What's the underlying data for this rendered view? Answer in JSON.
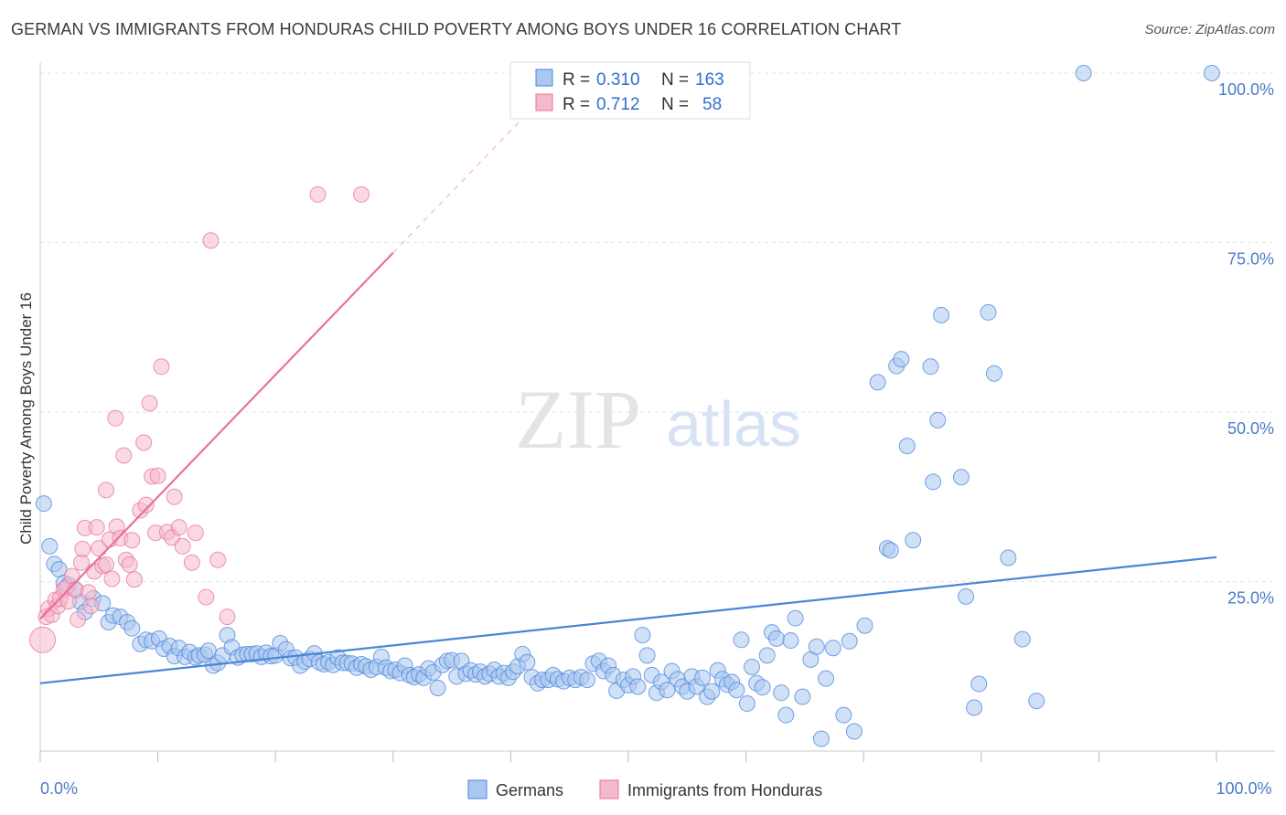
{
  "header": {
    "title": "GERMAN VS IMMIGRANTS FROM HONDURAS CHILD POVERTY AMONG BOYS UNDER 16 CORRELATION CHART",
    "source": "Source: ZipAtlas.com"
  },
  "watermark": {
    "zip": "ZIP",
    "atlas": "atlas"
  },
  "colors": {
    "blue": "#4a86d8",
    "blue_fill": "#a9c7f0",
    "pink": "#e8729a",
    "pink_fill": "#f6b9cc",
    "tick": "#4a7cc7"
  },
  "legend": {
    "rows": [
      {
        "r_label": "R =",
        "r_value": "0.310",
        "n_label": "N =",
        "n_value": "163"
      },
      {
        "r_label": "R =",
        "r_value": "0.712",
        "n_label": "N =",
        "n_value": "58"
      }
    ]
  },
  "chart_data": {
    "type": "scatter",
    "title": "GERMAN VS IMMIGRANTS FROM HONDURAS CHILD POVERTY AMONG BOYS UNDER 16 CORRELATION CHART",
    "xlabel": "",
    "ylabel": "Child Poverty Among Boys Under 16",
    "xlim": [
      0,
      100
    ],
    "ylim": [
      0,
      100
    ],
    "y_tick_labels": [
      "100.0%",
      "75.0%",
      "50.0%",
      "25.0%"
    ],
    "y_tick_values": [
      100,
      75,
      50,
      25
    ],
    "x_tick_labels": [
      "0.0%",
      "100.0%"
    ],
    "x_tick_values": [
      0,
      100
    ],
    "legend_position": "top-center",
    "series": [
      {
        "name": "Germans",
        "color": "#4a86d8",
        "trend": {
          "x": [
            0,
            100
          ],
          "y": [
            10.0,
            28.6
          ]
        },
        "points": [
          [
            0.3,
            36.5
          ],
          [
            0.8,
            30.2
          ],
          [
            1.2,
            27.6
          ],
          [
            1.6,
            26.8
          ],
          [
            2.0,
            24.8
          ],
          [
            2.4,
            24.5
          ],
          [
            3.0,
            23.8
          ],
          [
            3.4,
            22.0
          ],
          [
            3.8,
            20.5
          ],
          [
            4.5,
            22.5
          ],
          [
            5.3,
            21.8
          ],
          [
            5.8,
            19.0
          ],
          [
            6.2,
            20.0
          ],
          [
            6.8,
            19.8
          ],
          [
            7.4,
            19.0
          ],
          [
            7.8,
            18.1
          ],
          [
            8.5,
            15.8
          ],
          [
            9.0,
            16.4
          ],
          [
            9.5,
            16.2
          ],
          [
            10.1,
            16.6
          ],
          [
            10.5,
            15.1
          ],
          [
            11.0,
            15.5
          ],
          [
            11.4,
            14.0
          ],
          [
            11.8,
            15.2
          ],
          [
            12.3,
            13.9
          ],
          [
            12.7,
            14.6
          ],
          [
            13.2,
            13.8
          ],
          [
            13.5,
            14.1
          ],
          [
            14.0,
            14.2
          ],
          [
            14.3,
            14.8
          ],
          [
            14.7,
            12.6
          ],
          [
            15.1,
            13.0
          ],
          [
            15.5,
            14.1
          ],
          [
            15.9,
            17.1
          ],
          [
            16.3,
            15.3
          ],
          [
            16.8,
            13.8
          ],
          [
            17.2,
            14.2
          ],
          [
            17.6,
            14.3
          ],
          [
            18.0,
            14.3
          ],
          [
            18.4,
            14.4
          ],
          [
            18.8,
            13.9
          ],
          [
            19.2,
            14.5
          ],
          [
            19.6,
            14.0
          ],
          [
            20.0,
            14.1
          ],
          [
            20.4,
            15.9
          ],
          [
            20.9,
            15.0
          ],
          [
            21.3,
            13.7
          ],
          [
            21.7,
            13.8
          ],
          [
            22.1,
            12.6
          ],
          [
            22.5,
            13.2
          ],
          [
            22.9,
            13.6
          ],
          [
            23.3,
            14.4
          ],
          [
            23.7,
            13.1
          ],
          [
            24.1,
            12.8
          ],
          [
            24.5,
            13.1
          ],
          [
            24.9,
            12.7
          ],
          [
            25.3,
            13.8
          ],
          [
            25.7,
            13.0
          ],
          [
            26.1,
            13.0
          ],
          [
            26.5,
            12.9
          ],
          [
            26.9,
            12.3
          ],
          [
            27.3,
            12.8
          ],
          [
            27.7,
            12.5
          ],
          [
            28.1,
            12.0
          ],
          [
            28.6,
            12.4
          ],
          [
            29.0,
            13.9
          ],
          [
            29.4,
            12.3
          ],
          [
            29.8,
            11.8
          ],
          [
            30.2,
            12.0
          ],
          [
            30.6,
            11.5
          ],
          [
            31.0,
            12.6
          ],
          [
            31.4,
            11.2
          ],
          [
            31.8,
            10.9
          ],
          [
            32.2,
            11.3
          ],
          [
            32.6,
            10.8
          ],
          [
            33.0,
            12.2
          ],
          [
            33.4,
            11.6
          ],
          [
            33.8,
            9.3
          ],
          [
            34.2,
            12.7
          ],
          [
            34.6,
            13.3
          ],
          [
            35.0,
            13.4
          ],
          [
            35.4,
            11.0
          ],
          [
            35.8,
            13.3
          ],
          [
            36.2,
            11.4
          ],
          [
            36.6,
            11.9
          ],
          [
            37.0,
            11.3
          ],
          [
            37.4,
            11.7
          ],
          [
            37.8,
            11.0
          ],
          [
            38.2,
            11.4
          ],
          [
            38.6,
            12.0
          ],
          [
            39.0,
            11.0
          ],
          [
            39.4,
            11.5
          ],
          [
            39.8,
            10.8
          ],
          [
            40.2,
            11.7
          ],
          [
            40.6,
            12.5
          ],
          [
            41.0,
            14.3
          ],
          [
            41.4,
            13.1
          ],
          [
            41.8,
            10.9
          ],
          [
            42.3,
            10.0
          ],
          [
            42.7,
            10.5
          ],
          [
            43.2,
            10.5
          ],
          [
            43.6,
            11.2
          ],
          [
            44.0,
            10.6
          ],
          [
            44.5,
            10.3
          ],
          [
            45.0,
            10.8
          ],
          [
            45.5,
            10.5
          ],
          [
            46.0,
            10.9
          ],
          [
            46.5,
            10.5
          ],
          [
            47.0,
            12.9
          ],
          [
            47.5,
            13.3
          ],
          [
            47.9,
            11.8
          ],
          [
            48.3,
            12.6
          ],
          [
            48.7,
            11.2
          ],
          [
            49.0,
            8.9
          ],
          [
            49.6,
            10.5
          ],
          [
            50.0,
            9.7
          ],
          [
            50.4,
            11.0
          ],
          [
            50.8,
            9.5
          ],
          [
            51.2,
            17.1
          ],
          [
            51.6,
            14.1
          ],
          [
            52.0,
            11.2
          ],
          [
            52.4,
            8.6
          ],
          [
            52.8,
            10.2
          ],
          [
            53.3,
            9.0
          ],
          [
            53.7,
            11.8
          ],
          [
            54.2,
            10.6
          ],
          [
            54.6,
            9.5
          ],
          [
            55.0,
            8.8
          ],
          [
            55.4,
            11.0
          ],
          [
            55.8,
            9.5
          ],
          [
            56.3,
            10.8
          ],
          [
            56.7,
            8.0
          ],
          [
            57.1,
            8.8
          ],
          [
            57.6,
            11.9
          ],
          [
            58.0,
            10.6
          ],
          [
            58.4,
            9.8
          ],
          [
            58.8,
            10.2
          ],
          [
            59.2,
            9.0
          ],
          [
            59.6,
            16.4
          ],
          [
            60.1,
            7.0
          ],
          [
            60.5,
            12.4
          ],
          [
            60.9,
            10.0
          ],
          [
            61.4,
            9.4
          ],
          [
            61.8,
            14.1
          ],
          [
            62.2,
            17.5
          ],
          [
            62.6,
            16.6
          ],
          [
            63.0,
            8.6
          ],
          [
            63.4,
            5.3
          ],
          [
            63.8,
            16.3
          ],
          [
            64.2,
            19.6
          ],
          [
            64.8,
            8.0
          ],
          [
            65.5,
            13.5
          ],
          [
            66.0,
            15.4
          ],
          [
            66.4,
            1.8
          ],
          [
            66.8,
            10.7
          ],
          [
            67.4,
            15.2
          ],
          [
            68.3,
            5.3
          ],
          [
            68.8,
            16.2
          ],
          [
            69.2,
            2.9
          ],
          [
            70.1,
            18.5
          ],
          [
            71.2,
            54.4
          ],
          [
            72.0,
            29.9
          ],
          [
            72.3,
            29.6
          ],
          [
            72.8,
            56.8
          ],
          [
            73.2,
            57.8
          ],
          [
            73.7,
            45.0
          ],
          [
            74.2,
            31.1
          ],
          [
            75.7,
            56.7
          ],
          [
            75.9,
            39.7
          ],
          [
            76.3,
            48.8
          ],
          [
            76.6,
            64.3
          ],
          [
            78.3,
            40.4
          ],
          [
            78.7,
            22.8
          ],
          [
            79.4,
            6.4
          ],
          [
            79.8,
            9.9
          ],
          [
            80.6,
            64.7
          ],
          [
            81.1,
            55.7
          ],
          [
            82.3,
            28.5
          ],
          [
            83.5,
            16.5
          ],
          [
            84.7,
            7.4
          ],
          [
            88.7,
            100.0
          ],
          [
            99.6,
            100.0
          ]
        ]
      },
      {
        "name": "Immigrants from Honduras",
        "color": "#e8729a",
        "trend": {
          "x": [
            0,
            30
          ],
          "y": [
            19.5,
            73.5
          ]
        },
        "trend_extension": {
          "x": [
            30,
            45
          ],
          "y": [
            73.5,
            100.5
          ]
        },
        "points": [
          [
            0.2,
            16.4
          ],
          [
            0.5,
            19.8
          ],
          [
            0.7,
            21.0
          ],
          [
            1.0,
            20.1
          ],
          [
            1.3,
            22.3
          ],
          [
            1.5,
            21.4
          ],
          [
            1.7,
            22.5
          ],
          [
            2.0,
            23.8
          ],
          [
            2.2,
            24.1
          ],
          [
            2.4,
            22.1
          ],
          [
            2.7,
            25.8
          ],
          [
            3.0,
            23.8
          ],
          [
            3.2,
            19.4
          ],
          [
            3.5,
            27.8
          ],
          [
            3.6,
            29.8
          ],
          [
            3.8,
            32.9
          ],
          [
            4.1,
            23.4
          ],
          [
            4.3,
            21.4
          ],
          [
            4.6,
            26.5
          ],
          [
            4.8,
            33.0
          ],
          [
            5.0,
            29.9
          ],
          [
            5.3,
            27.3
          ],
          [
            5.6,
            27.5
          ],
          [
            5.6,
            38.5
          ],
          [
            5.9,
            31.2
          ],
          [
            6.1,
            25.4
          ],
          [
            6.4,
            49.1
          ],
          [
            6.5,
            33.1
          ],
          [
            6.8,
            31.4
          ],
          [
            7.1,
            43.6
          ],
          [
            7.3,
            28.2
          ],
          [
            7.6,
            27.5
          ],
          [
            7.8,
            31.1
          ],
          [
            8.0,
            25.3
          ],
          [
            8.5,
            35.5
          ],
          [
            8.8,
            45.5
          ],
          [
            9.0,
            36.3
          ],
          [
            9.3,
            51.3
          ],
          [
            9.5,
            40.5
          ],
          [
            9.8,
            32.2
          ],
          [
            10.0,
            40.6
          ],
          [
            10.3,
            56.7
          ],
          [
            10.8,
            32.3
          ],
          [
            11.2,
            31.5
          ],
          [
            11.4,
            37.5
          ],
          [
            11.8,
            33.0
          ],
          [
            12.1,
            30.2
          ],
          [
            12.9,
            27.8
          ],
          [
            13.2,
            32.2
          ],
          [
            14.1,
            22.7
          ],
          [
            14.5,
            75.3
          ],
          [
            15.1,
            28.2
          ],
          [
            15.9,
            19.8
          ],
          [
            23.6,
            82.1
          ],
          [
            27.3,
            82.1
          ]
        ]
      }
    ]
  },
  "bottom_legend": {
    "items": [
      "Germans",
      "Immigrants from Honduras"
    ]
  }
}
